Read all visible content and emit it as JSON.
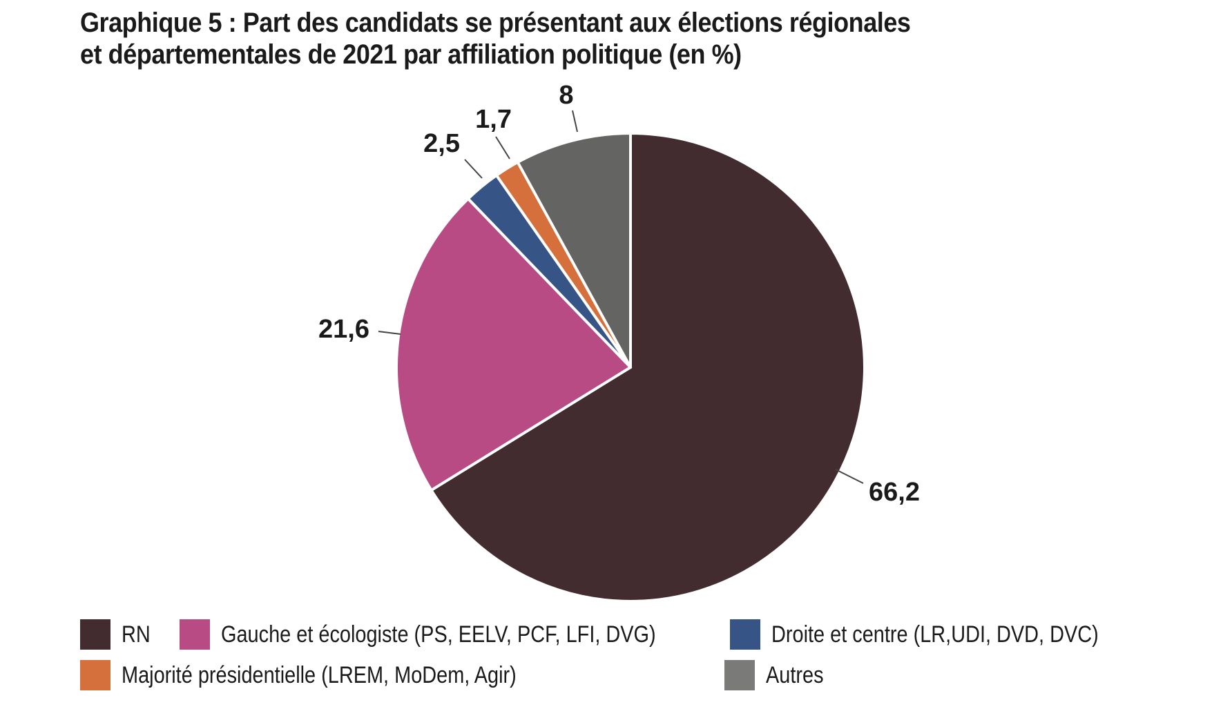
{
  "chart_data": {
    "type": "pie",
    "title": "Graphique 5 : Part des candidats se présentant aux élections régionales et départementales de 2021 par affiliation politique (en %)",
    "title_lines": [
      "Graphique 5 : Part des candidats se présentant aux élections régionales",
      "et départementales de 2021 par affiliation politique (en %)"
    ],
    "slices": [
      {
        "name": "RN",
        "value": 66.2,
        "label": "66,2",
        "color": "#432c2f"
      },
      {
        "name": "Gauche et écologiste (PS, EELV, PCF, LFI, DVG)",
        "value": 21.6,
        "label": "21,6",
        "color": "#b84a84"
      },
      {
        "name": "Droite et centre (LR,UDI, DVD, DVC)",
        "value": 2.5,
        "label": "2,5",
        "color": "#365485"
      },
      {
        "name": "Majorité présidentielle (LREM, MoDem, Agir)",
        "value": 1.7,
        "label": "1,7",
        "color": "#d5703c"
      },
      {
        "name": "Autres",
        "value": 8,
        "label": "8",
        "color": "#646462"
      }
    ],
    "legend_position": "bottom"
  }
}
